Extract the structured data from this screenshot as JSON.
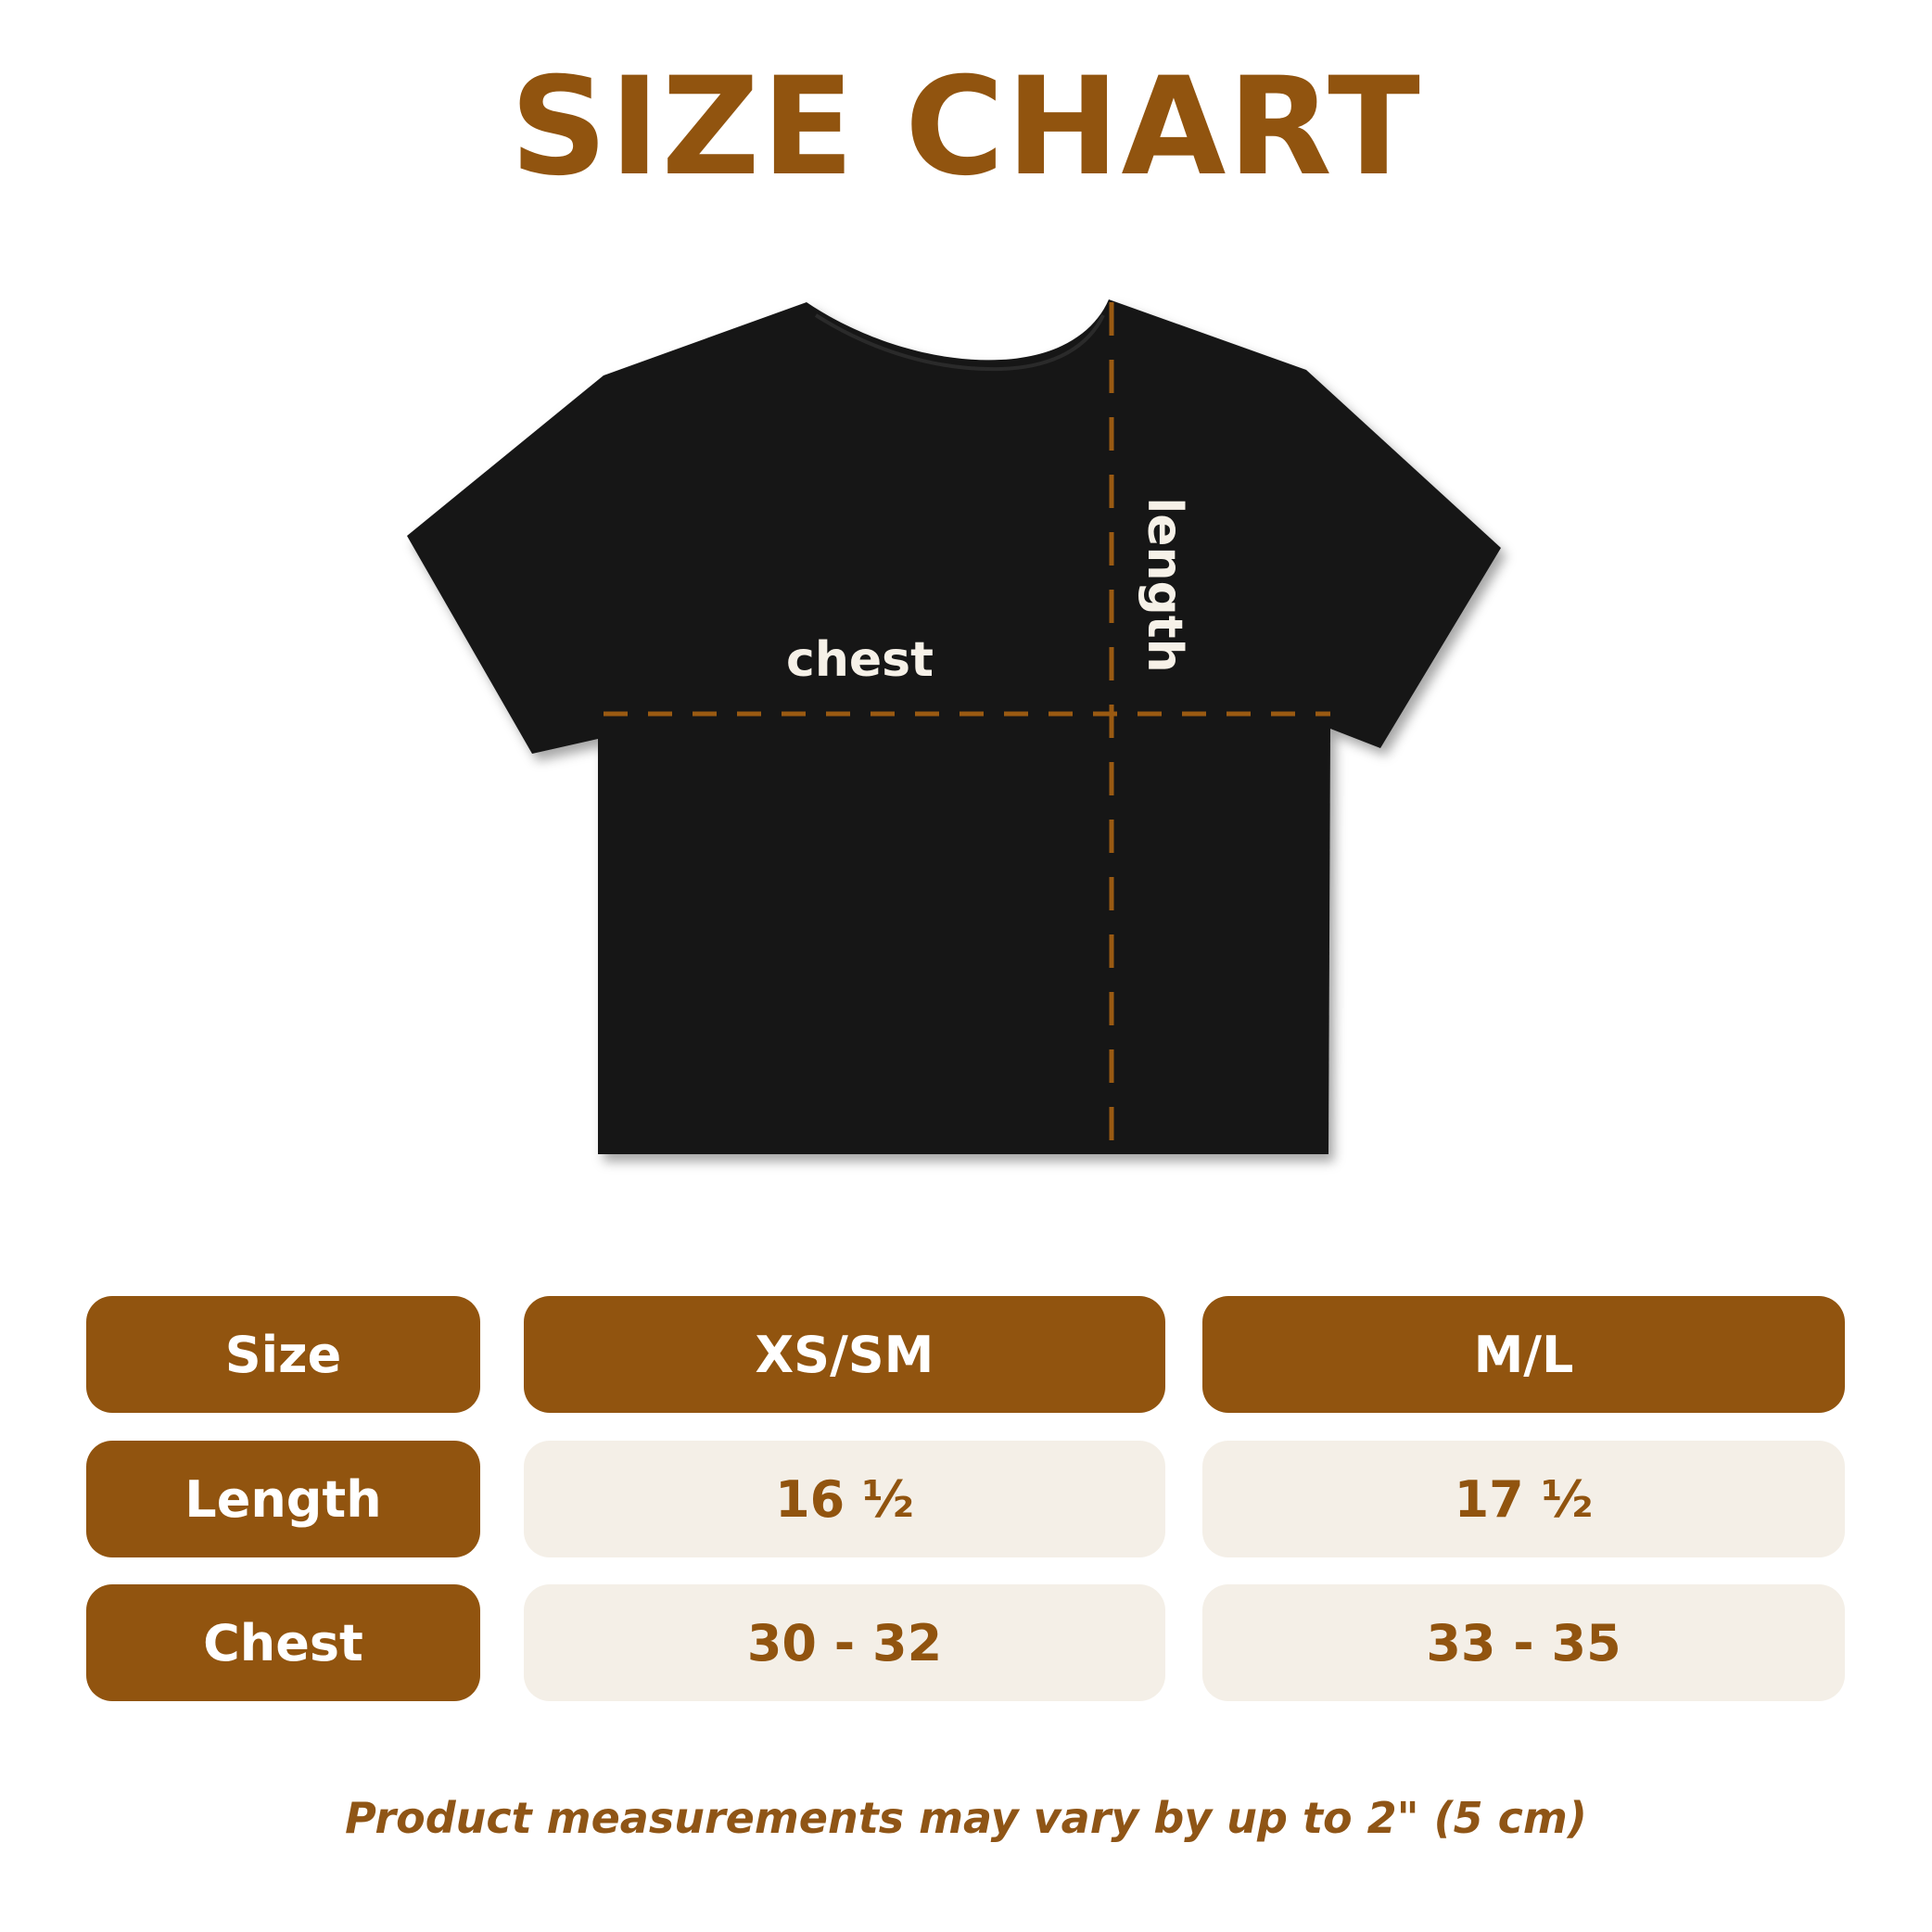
{
  "title": "SIZE CHART",
  "diagram": {
    "chest_label": "chest",
    "length_label": "length",
    "shirt_color": "#121212",
    "guide_color": "#9a5a12"
  },
  "table": {
    "header": {
      "label": "Size",
      "columns": [
        "XS/SM",
        "M/L"
      ]
    },
    "rows": [
      {
        "label": "Length",
        "values": [
          "16 ½",
          "17 ½"
        ]
      },
      {
        "label": "Chest",
        "values": [
          "30 - 32",
          "33 - 35"
        ]
      }
    ]
  },
  "note": "Product measurements may vary by up to 2\" (5 cm)",
  "colors": {
    "accent": "#91540f",
    "cell_bg": "#f4efe7"
  }
}
